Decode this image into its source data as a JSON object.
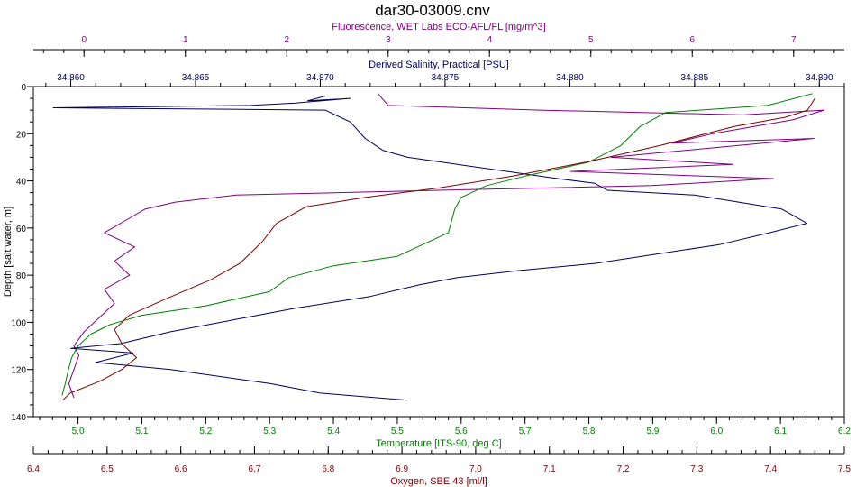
{
  "title": "dar30-03009.cnv",
  "colors": {
    "fluorescence": "#800080",
    "salinity": "#00005e",
    "temperature": "#008000",
    "oxygen": "#800000",
    "axis": "#000000"
  },
  "axes": {
    "fluorescence": {
      "label": "Fluorescence, WET Labs ECO-AFL/FL [mg/m^3]",
      "min": -0.5,
      "max": 7.5,
      "ticks": [
        {
          "v": 0,
          "t": "0"
        },
        {
          "v": 1,
          "t": "1"
        },
        {
          "v": 2,
          "t": "2"
        },
        {
          "v": 3,
          "t": "3"
        },
        {
          "v": 4,
          "t": "4"
        },
        {
          "v": 5,
          "t": "5"
        },
        {
          "v": 6,
          "t": "6"
        },
        {
          "v": 7,
          "t": "7"
        }
      ]
    },
    "salinity": {
      "label": "Derived Salinity, Practical [PSU]",
      "min": 34.8585,
      "max": 34.891,
      "ticks": [
        {
          "v": 34.86,
          "t": "34.860"
        },
        {
          "v": 34.865,
          "t": "34.865"
        },
        {
          "v": 34.87,
          "t": "34.870"
        },
        {
          "v": 34.875,
          "t": "34.875"
        },
        {
          "v": 34.88,
          "t": "34.880"
        },
        {
          "v": 34.885,
          "t": "34.885"
        },
        {
          "v": 34.89,
          "t": "34.890"
        }
      ]
    },
    "depth": {
      "label": "Depth [salt water, m]",
      "min": 0,
      "max": 140,
      "ticks": [
        {
          "v": 0,
          "t": "0"
        },
        {
          "v": 20,
          "t": "20"
        },
        {
          "v": 40,
          "t": "40"
        },
        {
          "v": 60,
          "t": "60"
        },
        {
          "v": 80,
          "t": "80"
        },
        {
          "v": 100,
          "t": "100"
        },
        {
          "v": 120,
          "t": "120"
        },
        {
          "v": 140,
          "t": "140"
        }
      ]
    },
    "temperature": {
      "label": "Temperature [ITS-90, deg C]",
      "min": 4.93,
      "max": 6.2,
      "ticks": [
        {
          "v": 5.0,
          "t": "5.0"
        },
        {
          "v": 5.1,
          "t": "5.1"
        },
        {
          "v": 5.2,
          "t": "5.2"
        },
        {
          "v": 5.3,
          "t": "5.3"
        },
        {
          "v": 5.4,
          "t": "5.4"
        },
        {
          "v": 5.5,
          "t": "5.5"
        },
        {
          "v": 5.6,
          "t": "5.6"
        },
        {
          "v": 5.7,
          "t": "5.7"
        },
        {
          "v": 5.8,
          "t": "5.8"
        },
        {
          "v": 5.9,
          "t": "5.9"
        },
        {
          "v": 6.0,
          "t": "6.0"
        },
        {
          "v": 6.1,
          "t": "6.1"
        },
        {
          "v": 6.2,
          "t": "6.2"
        }
      ]
    },
    "oxygen": {
      "label": "Oxygen, SBE 43 [ml/l]",
      "min": 6.4,
      "max": 7.5,
      "ticks": [
        {
          "v": 6.4,
          "t": "6.4"
        },
        {
          "v": 6.5,
          "t": "6.5"
        },
        {
          "v": 6.6,
          "t": "6.6"
        },
        {
          "v": 6.7,
          "t": "6.7"
        },
        {
          "v": 6.8,
          "t": "6.8"
        },
        {
          "v": 6.9,
          "t": "6.9"
        },
        {
          "v": 7.0,
          "t": "7.0"
        },
        {
          "v": 7.1,
          "t": "7.1"
        },
        {
          "v": 7.2,
          "t": "7.2"
        },
        {
          "v": 7.3,
          "t": "7.3"
        },
        {
          "v": 7.4,
          "t": "7.4"
        },
        {
          "v": 7.5,
          "t": "7.5"
        }
      ]
    }
  },
  "chart_data": {
    "type": "line",
    "title": "dar30-03009.cnv",
    "y_axis": {
      "label": "Depth [salt water, m]",
      "range": [
        0,
        140
      ],
      "reversed": true
    },
    "series": [
      {
        "name": "Fluorescence, WET Labs ECO-AFL/FL [mg/m^3]",
        "axis": "fluorescence",
        "points": [
          [
            2.9,
            3
          ],
          [
            3.0,
            8
          ],
          [
            4.5,
            10
          ],
          [
            6.5,
            12
          ],
          [
            7.3,
            10
          ],
          [
            7.0,
            14
          ],
          [
            6.2,
            20
          ],
          [
            5.8,
            24
          ],
          [
            7.2,
            22
          ],
          [
            5.2,
            30
          ],
          [
            6.4,
            33
          ],
          [
            4.8,
            36
          ],
          [
            6.8,
            39
          ],
          [
            5.6,
            42
          ],
          [
            3.5,
            44
          ],
          [
            1.5,
            46
          ],
          [
            0.9,
            49
          ],
          [
            0.6,
            52
          ],
          [
            0.4,
            57
          ],
          [
            0.2,
            62
          ],
          [
            0.5,
            68
          ],
          [
            0.3,
            74
          ],
          [
            0.45,
            80
          ],
          [
            0.2,
            86
          ],
          [
            0.3,
            92
          ],
          [
            0.15,
            98
          ],
          [
            0.0,
            104
          ],
          [
            -0.1,
            110
          ],
          [
            -0.05,
            114
          ],
          [
            -0.1,
            120
          ],
          [
            -0.15,
            126
          ],
          [
            -0.1,
            132
          ]
        ]
      },
      {
        "name": "Derived Salinity, Practical [PSU]",
        "axis": "salinity",
        "points": [
          [
            34.8702,
            4
          ],
          [
            34.8695,
            6
          ],
          [
            34.8712,
            5
          ],
          [
            34.869,
            7
          ],
          [
            34.8672,
            8
          ],
          [
            34.8593,
            9
          ],
          [
            34.8702,
            10
          ],
          [
            34.8712,
            15
          ],
          [
            34.8718,
            22
          ],
          [
            34.8725,
            27
          ],
          [
            34.8735,
            30
          ],
          [
            34.8755,
            33
          ],
          [
            34.8775,
            36
          ],
          [
            34.8795,
            39
          ],
          [
            34.881,
            41
          ],
          [
            34.8815,
            44
          ],
          [
            34.885,
            46
          ],
          [
            34.8885,
            52
          ],
          [
            34.8895,
            58
          ],
          [
            34.888,
            62
          ],
          [
            34.886,
            67
          ],
          [
            34.8835,
            71
          ],
          [
            34.881,
            75
          ],
          [
            34.878,
            78
          ],
          [
            34.8755,
            81
          ],
          [
            34.874,
            84
          ],
          [
            34.872,
            89
          ],
          [
            34.869,
            94
          ],
          [
            34.8665,
            99
          ],
          [
            34.864,
            104
          ],
          [
            34.862,
            109
          ],
          [
            34.86,
            111
          ],
          [
            34.8625,
            113
          ],
          [
            34.861,
            117
          ],
          [
            34.864,
            120
          ],
          [
            34.868,
            126
          ],
          [
            34.87,
            130
          ],
          [
            34.8735,
            133
          ]
        ]
      },
      {
        "name": "Temperature [ITS-90, deg C]",
        "axis": "temperature",
        "points": [
          [
            6.15,
            3
          ],
          [
            6.08,
            8
          ],
          [
            5.92,
            11
          ],
          [
            5.88,
            17
          ],
          [
            5.85,
            25
          ],
          [
            5.8,
            32
          ],
          [
            5.7,
            38
          ],
          [
            5.64,
            42
          ],
          [
            5.6,
            47
          ],
          [
            5.59,
            52
          ],
          [
            5.58,
            62
          ],
          [
            5.5,
            72
          ],
          [
            5.4,
            76
          ],
          [
            5.33,
            81
          ],
          [
            5.3,
            87
          ],
          [
            5.2,
            93
          ],
          [
            5.1,
            97
          ],
          [
            5.05,
            101
          ],
          [
            5.02,
            105
          ],
          [
            5.0,
            110
          ],
          [
            4.99,
            115
          ],
          [
            4.985,
            120
          ],
          [
            4.98,
            126
          ],
          [
            4.975,
            131
          ]
        ]
      },
      {
        "name": "Oxygen, SBE 43 [ml/l]",
        "axis": "oxygen",
        "points": [
          [
            7.46,
            5
          ],
          [
            7.45,
            10
          ],
          [
            7.42,
            13
          ],
          [
            7.35,
            17
          ],
          [
            7.25,
            25
          ],
          [
            7.15,
            32
          ],
          [
            7.05,
            38
          ],
          [
            6.95,
            43
          ],
          [
            6.85,
            47
          ],
          [
            6.77,
            51
          ],
          [
            6.73,
            58
          ],
          [
            6.71,
            66
          ],
          [
            6.68,
            75
          ],
          [
            6.64,
            82
          ],
          [
            6.58,
            90
          ],
          [
            6.53,
            97
          ],
          [
            6.51,
            103
          ],
          [
            6.52,
            109
          ],
          [
            6.54,
            115
          ],
          [
            6.52,
            120
          ],
          [
            6.49,
            125
          ],
          [
            6.45,
            130
          ],
          [
            6.44,
            133
          ]
        ]
      }
    ]
  }
}
